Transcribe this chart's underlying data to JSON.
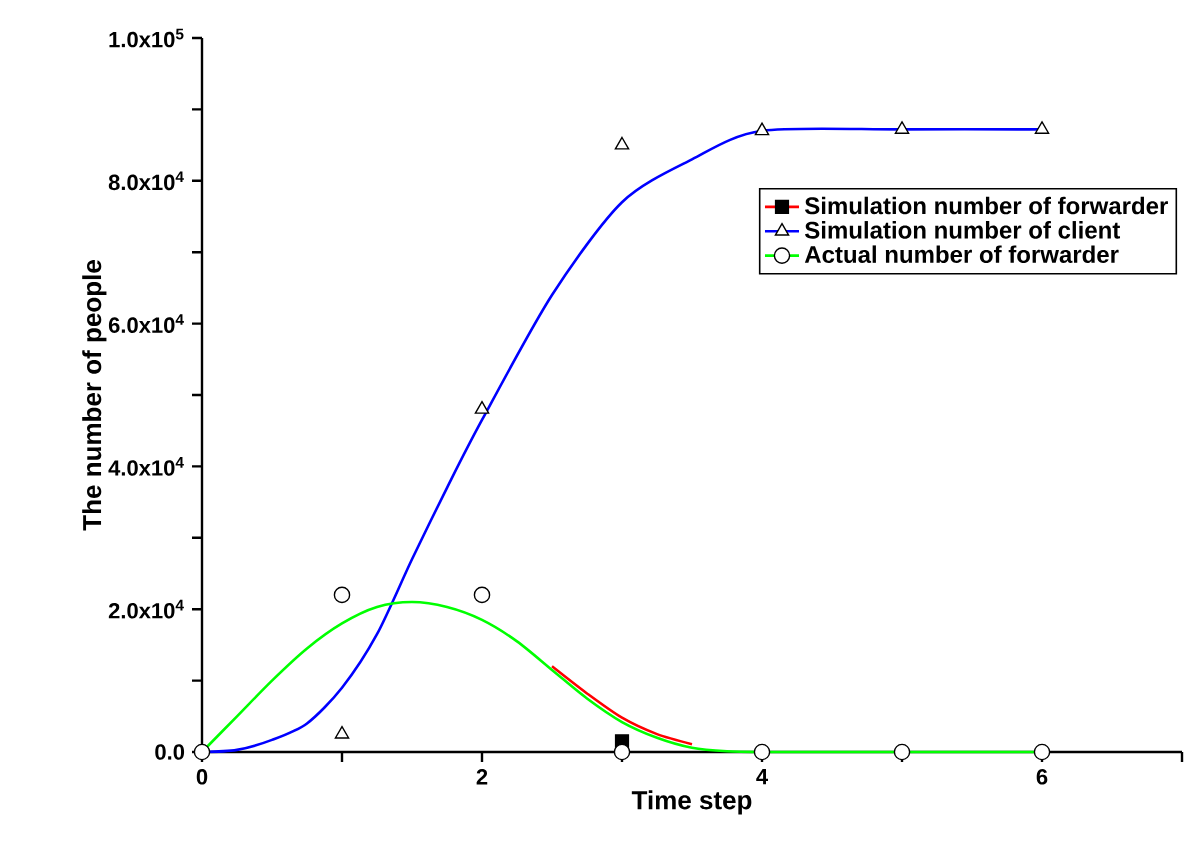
{
  "chart_data": {
    "type": "line",
    "xlabel": "Time step",
    "ylabel": "The number of people",
    "xlim": [
      0,
      7
    ],
    "ylim": [
      0,
      100000
    ],
    "xticks": [
      0,
      {
        "value": 1,
        "label": null
      },
      2,
      {
        "value": 3,
        "label": null
      },
      4,
      {
        "value": 5,
        "label": null
      },
      6,
      {
        "value": 7,
        "label": null
      }
    ],
    "yticks": [
      {
        "value": 0,
        "label": "0.0"
      },
      {
        "value": 10000,
        "label": null
      },
      {
        "value": 20000,
        "label": "2.0x10$^{4}$"
      },
      {
        "value": 30000,
        "label": null
      },
      {
        "value": 40000,
        "label": "4.0x10$^{4}$"
      },
      {
        "value": 50000,
        "label": null
      },
      {
        "value": 60000,
        "label": "6.0x10$^{4}$"
      },
      {
        "value": 70000,
        "label": null
      },
      {
        "value": 80000,
        "label": "8.0x10$^{4}$"
      },
      {
        "value": 90000,
        "label": null
      },
      {
        "value": 100000,
        "label": "1.0x10$^{5}$"
      }
    ],
    "legend": "top right",
    "line_style": "solid",
    "series": [
      {
        "type": "scatter",
        "name": "Simulation number of forwarder",
        "color": "#000000",
        "marker": "square",
        "x": [
          3
        ],
        "values": [
          1500
        ]
      },
      {
        "color": "#ff0000",
        "marker": "none",
        "x": [
          2.5,
          2.75,
          3,
          3.25,
          3.5
        ],
        "values": [
          12000,
          8200,
          4800,
          2500,
          1100
        ]
      },
      {
        "type": "scatter",
        "name": "Simulation number of  client",
        "color": "#000000",
        "marker": "triangle",
        "x": [
          1,
          2,
          3,
          4,
          5,
          6
        ],
        "values": [
          2500,
          48000,
          85000,
          87000,
          87200,
          87200
        ]
      },
      {
        "color": "#0000ff",
        "marker": "none",
        "x": [
          0,
          0.25,
          0.5,
          0.75,
          1,
          1.25,
          1.5,
          1.75,
          2,
          2.5,
          3,
          3.5,
          4,
          5,
          6
        ],
        "values": [
          0,
          300,
          1700,
          4000,
          9000,
          16500,
          27000,
          37000,
          46500,
          64000,
          77000,
          83000,
          87000,
          87200,
          87200
        ]
      },
      {
        "type": "scatter",
        "name": "Actual number of forwarder",
        "color": "#000000",
        "marker": "circle",
        "x": [
          0,
          1,
          2,
          3,
          4,
          5,
          6
        ],
        "values": [
          0,
          22000,
          22000,
          0,
          0,
          0,
          0
        ]
      },
      {
        "color": "#00ff00",
        "marker": "none",
        "x": [
          0,
          0.25,
          0.5,
          0.75,
          1,
          1.25,
          1.5,
          1.75,
          2,
          2.25,
          2.5,
          2.75,
          3,
          3.25,
          3.5,
          3.75,
          4,
          5,
          6
        ],
        "values": [
          0,
          5000,
          10000,
          14500,
          18000,
          20300,
          21000,
          20300,
          18500,
          15500,
          11500,
          7500,
          4200,
          2000,
          600,
          100,
          0,
          0,
          0
        ]
      }
    ]
  }
}
